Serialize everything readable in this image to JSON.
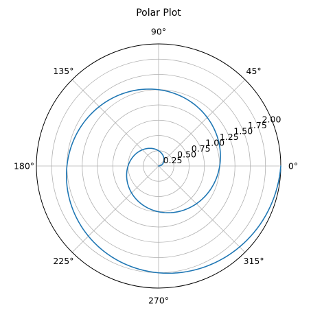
{
  "chart_data": {
    "type": "line",
    "projection": "polar",
    "title": "Polar Plot",
    "xlabel": "",
    "ylabel": "",
    "theta_tick_labels": [
      "0°",
      "45°",
      "90°",
      "135°",
      "180°",
      "225°",
      "270°",
      "315°"
    ],
    "theta_ticks_deg": [
      0,
      45,
      90,
      135,
      180,
      225,
      270,
      315
    ],
    "r_tick_labels": [
      "0.25",
      "0.50",
      "0.75",
      "1.00",
      "1.25",
      "1.50",
      "1.75",
      "2.00"
    ],
    "r_ticks": [
      0.25,
      0.5,
      0.75,
      1.0,
      1.25,
      1.5,
      1.75,
      2.0
    ],
    "r_label_angle_deg": 22.5,
    "rlim": [
      0,
      2.0
    ],
    "grid": true,
    "series": [
      {
        "color": "#1f77b4",
        "theta_deg": [
          0,
          30,
          60,
          90,
          120,
          150,
          180,
          210,
          240,
          270,
          300,
          330,
          360,
          390,
          420,
          450,
          480,
          510,
          540,
          570,
          600,
          630,
          660,
          690,
          720
        ],
        "r": [
          0.0,
          0.083,
          0.167,
          0.25,
          0.333,
          0.417,
          0.5,
          0.583,
          0.667,
          0.75,
          0.833,
          0.917,
          1.0,
          1.083,
          1.167,
          1.25,
          1.333,
          1.417,
          1.5,
          1.583,
          1.667,
          1.75,
          1.833,
          1.917,
          2.0
        ]
      }
    ]
  },
  "colors": {
    "line": "#1f77b4",
    "grid": "#b0b0b0",
    "spine": "#000000"
  }
}
